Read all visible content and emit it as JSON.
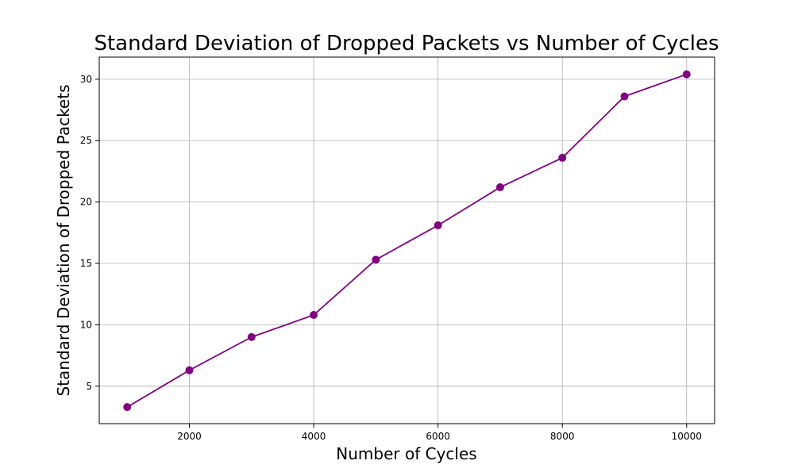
{
  "chart_data": {
    "type": "line",
    "title": "Standard Deviation of Dropped Packets vs Number of Cycles",
    "xlabel": "Number of Cycles",
    "ylabel": "Standard Deviation of Dropped Packets",
    "x": [
      1000,
      2000,
      3000,
      4000,
      5000,
      6000,
      7000,
      8000,
      9000,
      10000
    ],
    "series": [
      {
        "values": [
          3.3,
          6.3,
          9.0,
          10.8,
          15.3,
          18.1,
          21.2,
          23.6,
          28.6,
          30.4
        ],
        "color": "#800080",
        "marker": "circle"
      }
    ],
    "xlim": [
      550,
      10450
    ],
    "ylim": [
      1.95,
      31.8
    ],
    "xticks": [
      2000,
      4000,
      6000,
      8000,
      10000
    ],
    "yticks": [
      5,
      10,
      15,
      20,
      25,
      30
    ],
    "grid": true,
    "grid_color": "#b0b0b0",
    "legend": false
  }
}
